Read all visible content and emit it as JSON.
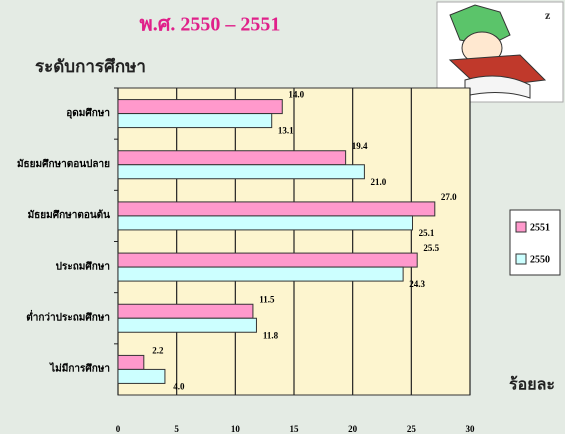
{
  "chart_data": {
    "type": "hbar",
    "title": "พ.ศ. 2550 – 2551",
    "y_label": "ระดับการศึกษา",
    "x_label": "ร้อยละ",
    "categories": [
      "อุดมศึกษา",
      "มัธยมศึกษาตอนปลาย",
      "มัธยมศึกษาตอนต้น",
      "ประถมศึกษา",
      "ต่ำกว่าประถมศึกษา",
      "ไม่มีการศึกษา"
    ],
    "series": [
      {
        "name": "2551",
        "color": "#ff99cc",
        "values": [
          14.0,
          19.4,
          27.0,
          25.5,
          11.5,
          2.2
        ],
        "value_labels": [
          "14.0",
          "19.4",
          "27.0",
          "25.5",
          "11.5",
          "2.2"
        ]
      },
      {
        "name": "2550",
        "color": "#ccffff",
        "values": [
          13.1,
          21.0,
          25.1,
          24.3,
          11.8,
          4.0
        ],
        "value_labels": [
          "13.1",
          "21.0",
          "25.1",
          "24.3",
          "11.8",
          "4.0"
        ]
      }
    ],
    "xlim": [
      0,
      30
    ],
    "xticks": [
      0,
      5,
      10,
      15,
      20,
      25,
      30
    ],
    "grid": true
  }
}
